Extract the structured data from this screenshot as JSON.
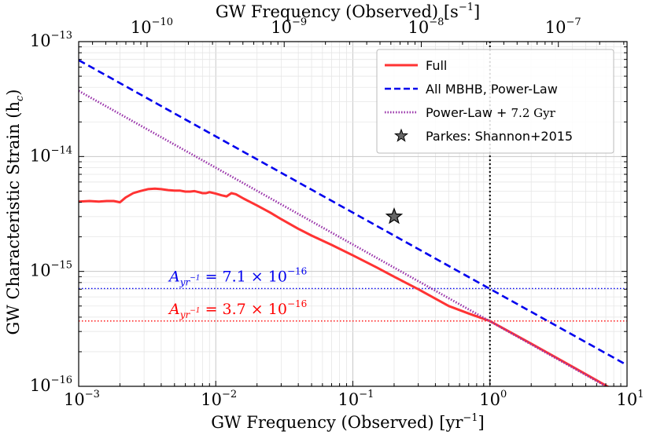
{
  "chart_data": {
    "type": "line",
    "scale": {
      "x": "log",
      "y": "log"
    },
    "xlabel": {
      "main": "GW Frequency (Observed)",
      "unit": "[yr",
      "unit_exp": "−1",
      "unit_end": "]"
    },
    "x2label": {
      "main": "GW Frequency (Observed)",
      "unit": "[s",
      "unit_exp": "−1",
      "unit_end": "]"
    },
    "ylabel": {
      "main": "GW Characteristic Strain",
      "symbol": "(h",
      "sub": "c",
      "end": ")"
    },
    "xlim": [
      0.001,
      10
    ],
    "ylim": [
      1e-16,
      1e-13
    ],
    "x_ticks": [
      {
        "value": 0.001,
        "base": "10",
        "exp": "-3"
      },
      {
        "value": 0.01,
        "base": "10",
        "exp": "-2"
      },
      {
        "value": 0.1,
        "base": "10",
        "exp": "-1"
      },
      {
        "value": 1,
        "base": "10",
        "exp": "0"
      },
      {
        "value": 10,
        "base": "10",
        "exp": "1"
      }
    ],
    "x2_ticks": [
      {
        "value": 1e-10,
        "base": "10",
        "exp": "-10"
      },
      {
        "value": 1e-09,
        "base": "10",
        "exp": "-9"
      },
      {
        "value": 1e-08,
        "base": "10",
        "exp": "-8"
      },
      {
        "value": 1e-07,
        "base": "10",
        "exp": "-7"
      }
    ],
    "y_ticks": [
      {
        "value": 1e-13,
        "base": "10",
        "exp": "-13"
      },
      {
        "value": 1e-14,
        "base": "10",
        "exp": "-14"
      },
      {
        "value": 1e-15,
        "base": "10",
        "exp": "-15"
      },
      {
        "value": 1e-16,
        "base": "10",
        "exp": "-16"
      }
    ],
    "series": [
      {
        "name": "Full",
        "color": "#ff3333",
        "style": "solid",
        "x": [
          0.001,
          0.0012,
          0.0014,
          0.0016,
          0.0018,
          0.002,
          0.0022,
          0.0025,
          0.0028,
          0.0032,
          0.0036,
          0.004,
          0.0045,
          0.005,
          0.0055,
          0.006,
          0.0065,
          0.007,
          0.0075,
          0.008,
          0.0085,
          0.009,
          0.01,
          0.011,
          0.012,
          0.013,
          0.014,
          0.016,
          0.018,
          0.02,
          0.025,
          0.03,
          0.04,
          0.05,
          0.07,
          0.1,
          0.15,
          0.2,
          0.3,
          0.5,
          0.7,
          1.0,
          2.0,
          4.0,
          8.0
        ],
        "y": [
          4.05e-15,
          4.1e-15,
          4.05e-15,
          4.1e-15,
          4.1e-15,
          4e-15,
          4.4e-15,
          4.8e-15,
          5e-15,
          5.2e-15,
          5.25e-15,
          5.2e-15,
          5.1e-15,
          5.05e-15,
          5.05e-15,
          4.95e-15,
          4.95e-15,
          5e-15,
          4.9e-15,
          4.8e-15,
          4.8e-15,
          4.9e-15,
          4.75e-15,
          4.6e-15,
          4.5e-15,
          4.8e-15,
          4.7e-15,
          4.3e-15,
          4e-15,
          3.75e-15,
          3.25e-15,
          2.85e-15,
          2.35e-15,
          2.05e-15,
          1.7e-15,
          1.38e-15,
          1.08e-15,
          9e-16,
          7e-16,
          5e-16,
          4.3e-16,
          3.7e-16,
          2.35e-16,
          1.48e-16,
          9.3e-17
        ]
      },
      {
        "name": "All MBHB, Power-Law",
        "color": "#0000ee",
        "style": "dashed",
        "x": [
          0.001,
          10
        ],
        "y": [
          6.9e-14,
          1.53e-16
        ]
      },
      {
        "name": "Power-Law + 7.2 Gyr",
        "color": "#9933aa",
        "style": "dotted",
        "x": [
          0.001,
          10
        ],
        "y": [
          3.72e-14,
          7.9e-17
        ]
      }
    ],
    "points": [
      {
        "name": "Parkes: Shannon+2015",
        "x": 0.2,
        "y": 3e-15,
        "marker": "star",
        "color": "#666666"
      }
    ],
    "hlines": [
      {
        "y": 7.1e-16,
        "color": "#0000ee",
        "label_prefix": "A",
        "label_sub": "yr",
        "label_sub_exp": "−1",
        "label_eq": " = 7.1 × 10",
        "label_exp": "−16"
      },
      {
        "y": 3.7e-16,
        "color": "#ff0000",
        "label_prefix": "A",
        "label_sub": "yr",
        "label_sub_exp": "−1",
        "label_eq": " = 3.7 × 10",
        "label_exp": "−16"
      }
    ],
    "vlines": [
      {
        "x": 1.0,
        "color": "#000000",
        "style": "dotted"
      }
    ],
    "legend": {
      "position": "top-right",
      "entries": [
        {
          "label": "Full",
          "style": "solid",
          "color": "#ff3333"
        },
        {
          "label": "All MBHB, Power-Law",
          "style": "dashed",
          "color": "#0000ee"
        },
        {
          "label": "Power-Law + ",
          "math": "7.2 Gyr",
          "style": "dotted",
          "color": "#9933aa"
        },
        {
          "label": "Parkes: Shannon+2015",
          "style": "star",
          "color": "#666666"
        }
      ]
    },
    "grid": true
  }
}
